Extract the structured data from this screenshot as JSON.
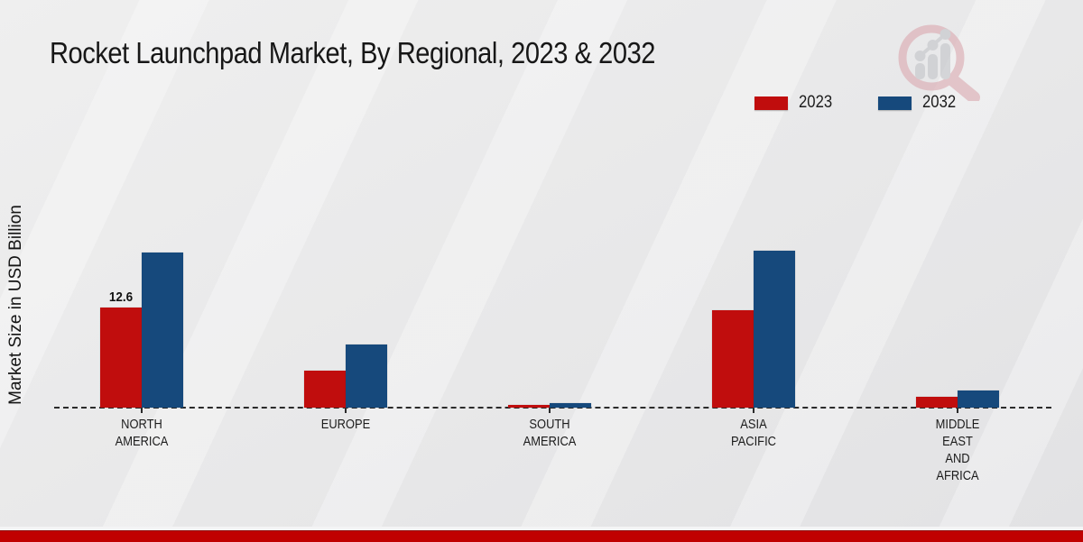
{
  "title": "Rocket Launchpad Market, By Regional, 2023 & 2032",
  "icons": {
    "watermark": "magnifying-glass-bar-chart-logo"
  },
  "legend": {
    "items": [
      "2023",
      "2032"
    ]
  },
  "footer": {
    "band_color": "#c00000"
  },
  "chart_data": {
    "type": "bar",
    "title": "Rocket Launchpad Market, By Regional, 2023 & 2032",
    "xlabel": "",
    "ylabel": "Market Size in USD Billion",
    "categories": [
      "NORTH AMERICA",
      "EUROPE",
      "SOUTH AMERICA",
      "ASIA PACIFIC",
      "MIDDLE EAST AND AFRICA"
    ],
    "category_label_lines": [
      [
        "NORTH",
        "AMERICA"
      ],
      [
        "EUROPE"
      ],
      [
        "SOUTH",
        "AMERICA"
      ],
      [
        "ASIA",
        "PACIFIC"
      ],
      [
        "MIDDLE",
        "EAST",
        "AND",
        "AFRICA"
      ]
    ],
    "series": [
      {
        "name": "2023",
        "color": "#c00d0d",
        "values": [
          12.6,
          4.7,
          0.3,
          12.3,
          1.4
        ]
      },
      {
        "name": "2032",
        "color": "#16497c",
        "values": [
          19.5,
          8.0,
          0.6,
          19.8,
          2.2
        ]
      }
    ],
    "data_labels": [
      {
        "series": "2023",
        "category": "NORTH AMERICA",
        "text": "12.6"
      }
    ],
    "ylim": [
      0,
      22
    ],
    "grid": false,
    "y_axis_ticks_visible": false,
    "baseline_style": "dashed",
    "legend_position": "top-right"
  }
}
